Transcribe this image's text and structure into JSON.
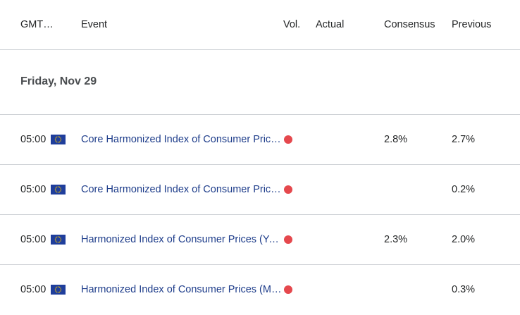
{
  "header": {
    "time": "GMT…",
    "event": "Event",
    "vol": "Vol.",
    "actual": "Actual",
    "consensus": "Consensus",
    "previous": "Previous"
  },
  "day": {
    "label": "Friday, Nov 29"
  },
  "events": [
    {
      "time": "05:00",
      "flag": "eu-flag-icon",
      "event": "Core Harmonized Index of Consumer Prices (YoY)",
      "vol_color": "#e5484d",
      "actual": "",
      "consensus": "2.8%",
      "previous": "2.7%"
    },
    {
      "time": "05:00",
      "flag": "eu-flag-icon",
      "event": "Core Harmonized Index of Consumer Prices (MoM)",
      "vol_color": "#e5484d",
      "actual": "",
      "consensus": "",
      "previous": "0.2%"
    },
    {
      "time": "05:00",
      "flag": "eu-flag-icon",
      "event": "Harmonized Index of Consumer Prices (YoY)",
      "vol_color": "#e5484d",
      "actual": "",
      "consensus": "2.3%",
      "previous": "2.0%"
    },
    {
      "time": "05:00",
      "flag": "eu-flag-icon",
      "event": "Harmonized Index of Consumer Prices (MoM)",
      "vol_color": "#e5484d",
      "actual": "",
      "consensus": "",
      "previous": "0.3%"
    }
  ]
}
